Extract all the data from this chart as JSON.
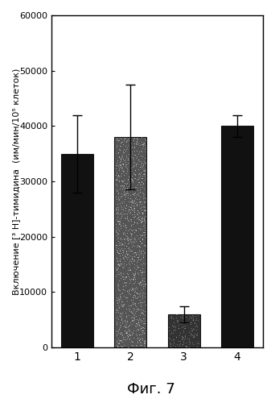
{
  "categories": [
    "1",
    "2",
    "3",
    "4"
  ],
  "values": [
    35000,
    38000,
    6000,
    40000
  ],
  "errors": [
    7000,
    9500,
    1500,
    2000
  ],
  "bar_colors": [
    "#111111",
    "#555555",
    "#333333",
    "#111111"
  ],
  "bar_hatches": [
    null,
    null,
    null,
    null
  ],
  "ylim": [
    0,
    60000
  ],
  "yticks": [
    0,
    10000,
    20000,
    30000,
    40000,
    50000,
    60000
  ],
  "ylabel": "Включение [³ H]-тимидина  (им/мин/10⁵ клеток)",
  "xlabel_footer": "Фиг. 7",
  "background_color": "#ffffff",
  "bar_width": 0.6,
  "capsize": 4,
  "noise_bar_idx": 1,
  "noise_bar3_idx": 2
}
